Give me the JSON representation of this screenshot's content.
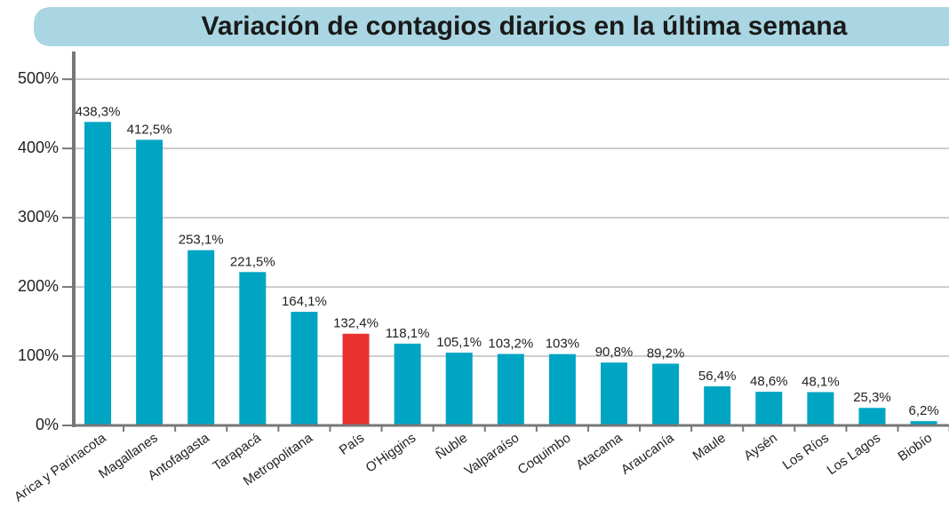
{
  "chart_data": {
    "type": "bar",
    "title": "Variación de contagios diarios en la última semana",
    "categories": [
      "Arica y Parinacota",
      "Magallanes",
      "Antofagasta",
      "Tarapacá",
      "Metropolitana",
      "País",
      "O'Higgins",
      "Ñuble",
      "Valparaíso",
      "Coquimbo",
      "Atacama",
      "Araucanía",
      "Maule",
      "Aysén",
      "Los Ríos",
      "Los Lagos",
      "Biobío"
    ],
    "values": [
      438.3,
      412.5,
      253.1,
      221.5,
      164.1,
      132.4,
      118.1,
      105.1,
      103.2,
      103,
      90.8,
      89.2,
      56.4,
      48.6,
      48.1,
      25.3,
      6.2
    ],
    "value_labels": [
      "438,3%",
      "412,5%",
      "253,1%",
      "221,5%",
      "164,1%",
      "132,4%",
      "118,1%",
      "105,1%",
      "103,2%",
      "103%",
      "90,8%",
      "89,2%",
      "56,4%",
      "48,6%",
      "48,1%",
      "25,3%",
      "6,2%"
    ],
    "colors": [
      "#00a5c4",
      "#00a5c4",
      "#00a5c4",
      "#00a5c4",
      "#00a5c4",
      "#e8312f",
      "#00a5c4",
      "#00a5c4",
      "#00a5c4",
      "#00a5c4",
      "#00a5c4",
      "#00a5c4",
      "#00a5c4",
      "#00a5c4",
      "#00a5c4",
      "#00a5c4",
      "#00a5c4"
    ],
    "ylim": [
      0,
      540
    ],
    "yticks": [
      {
        "value": 0,
        "label": "0%"
      },
      {
        "value": 100,
        "label": "100%"
      },
      {
        "value": 200,
        "label": "200%"
      },
      {
        "value": 300,
        "label": "300%"
      },
      {
        "value": 400,
        "label": "400%"
      },
      {
        "value": 500,
        "label": "500%"
      }
    ],
    "grid": true
  }
}
